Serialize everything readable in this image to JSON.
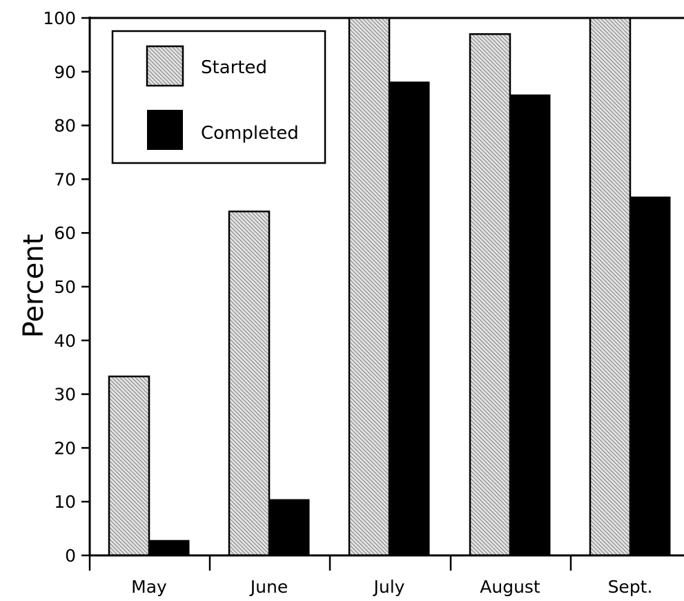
{
  "chart_data": {
    "type": "bar",
    "title": "",
    "xlabel": "",
    "ylabel": "Percent",
    "ylim": [
      0,
      100
    ],
    "yticks": [
      0,
      10,
      20,
      30,
      40,
      50,
      60,
      70,
      80,
      90,
      100
    ],
    "categories": [
      "May",
      "June",
      "July",
      "August",
      "Sept."
    ],
    "series": [
      {
        "name": "Started",
        "fill": "hatched",
        "color": "#bdbdbd",
        "values": [
          33.3,
          64,
          100,
          97,
          100
        ]
      },
      {
        "name": "Completed",
        "fill": "solid",
        "color": "#000000",
        "values": [
          2.8,
          10.4,
          88.1,
          85.7,
          66.7
        ]
      }
    ],
    "legend": {
      "position": "top-left",
      "entries": [
        "Started",
        "Completed"
      ]
    },
    "grid": false
  }
}
